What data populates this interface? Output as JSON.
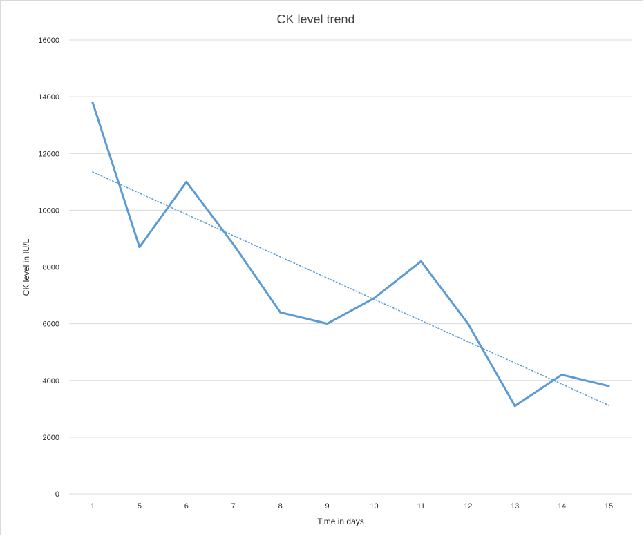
{
  "chart_data": {
    "type": "line",
    "title": "CK level trend",
    "xlabel": "Time in days",
    "ylabel": "CK level in IU/L",
    "categories": [
      "1",
      "5",
      "6",
      "7",
      "8",
      "9",
      "10",
      "11",
      "12",
      "13",
      "14",
      "15"
    ],
    "series": [
      {
        "values": [
          13800,
          8700,
          11000,
          8800,
          6400,
          6000,
          6900,
          8200,
          6000,
          3100,
          4200,
          3800
        ],
        "color": "#5b9bd5",
        "style": "solid"
      }
    ],
    "trendline": {
      "type": "linear",
      "start": 11350,
      "end": 3120,
      "color": "#5b9bd5",
      "style": "dotted"
    },
    "yticks": [
      0,
      2000,
      4000,
      6000,
      8000,
      10000,
      12000,
      14000,
      16000
    ],
    "ylim": [
      0,
      16000
    ],
    "grid": true,
    "gridline_color": "#d9d9d9",
    "legend": "none"
  }
}
